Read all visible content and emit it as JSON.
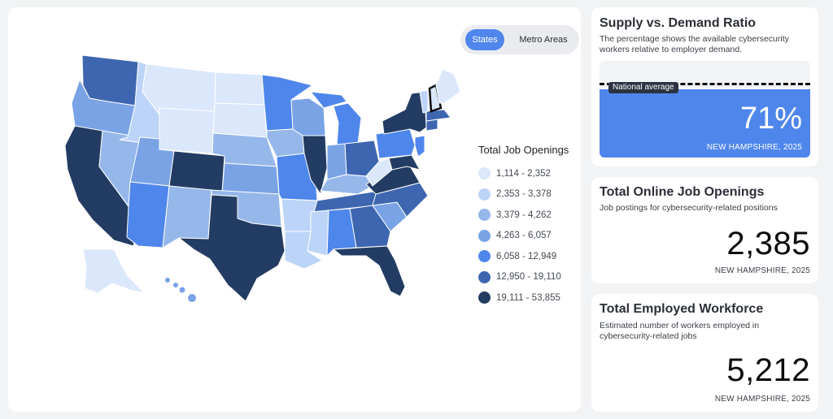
{
  "map": {
    "toggle": {
      "active_label": "States",
      "inactive_label": "Metro Areas"
    },
    "legend": {
      "title": "Total Job Openings",
      "bins": [
        {
          "label": "1,114 - 2,352",
          "color": "#dbe7fb"
        },
        {
          "label": "2,353 - 3,378",
          "color": "#bcd4f7"
        },
        {
          "label": "3,379 - 4,262",
          "color": "#95b7ea"
        },
        {
          "label": "4,263 - 6,057",
          "color": "#7aa3e6"
        },
        {
          "label": "6,058 - 12,949",
          "color": "#4f86ec"
        },
        {
          "label": "12,950 - 19,110",
          "color": "#3e66b0"
        },
        {
          "label": "19,111 - 53,855",
          "color": "#233c63"
        }
      ]
    }
  },
  "supply_demand": {
    "title": "Supply vs. Demand Ratio",
    "subtitle": "The percentage shows the available cybersecurity workers relative to employer demand.",
    "national_label": "National average",
    "value_text": "71%",
    "value_fraction": 0.71,
    "state": "NEW HAMPSHIRE, 2025",
    "fill_color": "#4f86ec"
  },
  "job_openings": {
    "title": "Total Online Job Openings",
    "subtitle": "Job postings for cybersecurity-related positions",
    "value": "2,385",
    "state": "NEW HAMPSHIRE, 2025"
  },
  "workforce": {
    "title": "Total Employed Workforce",
    "subtitle": "Estimated number of workers employed in cybersecurity-related jobs",
    "value": "5,212",
    "state": "NEW HAMPSHIRE, 2025"
  }
}
